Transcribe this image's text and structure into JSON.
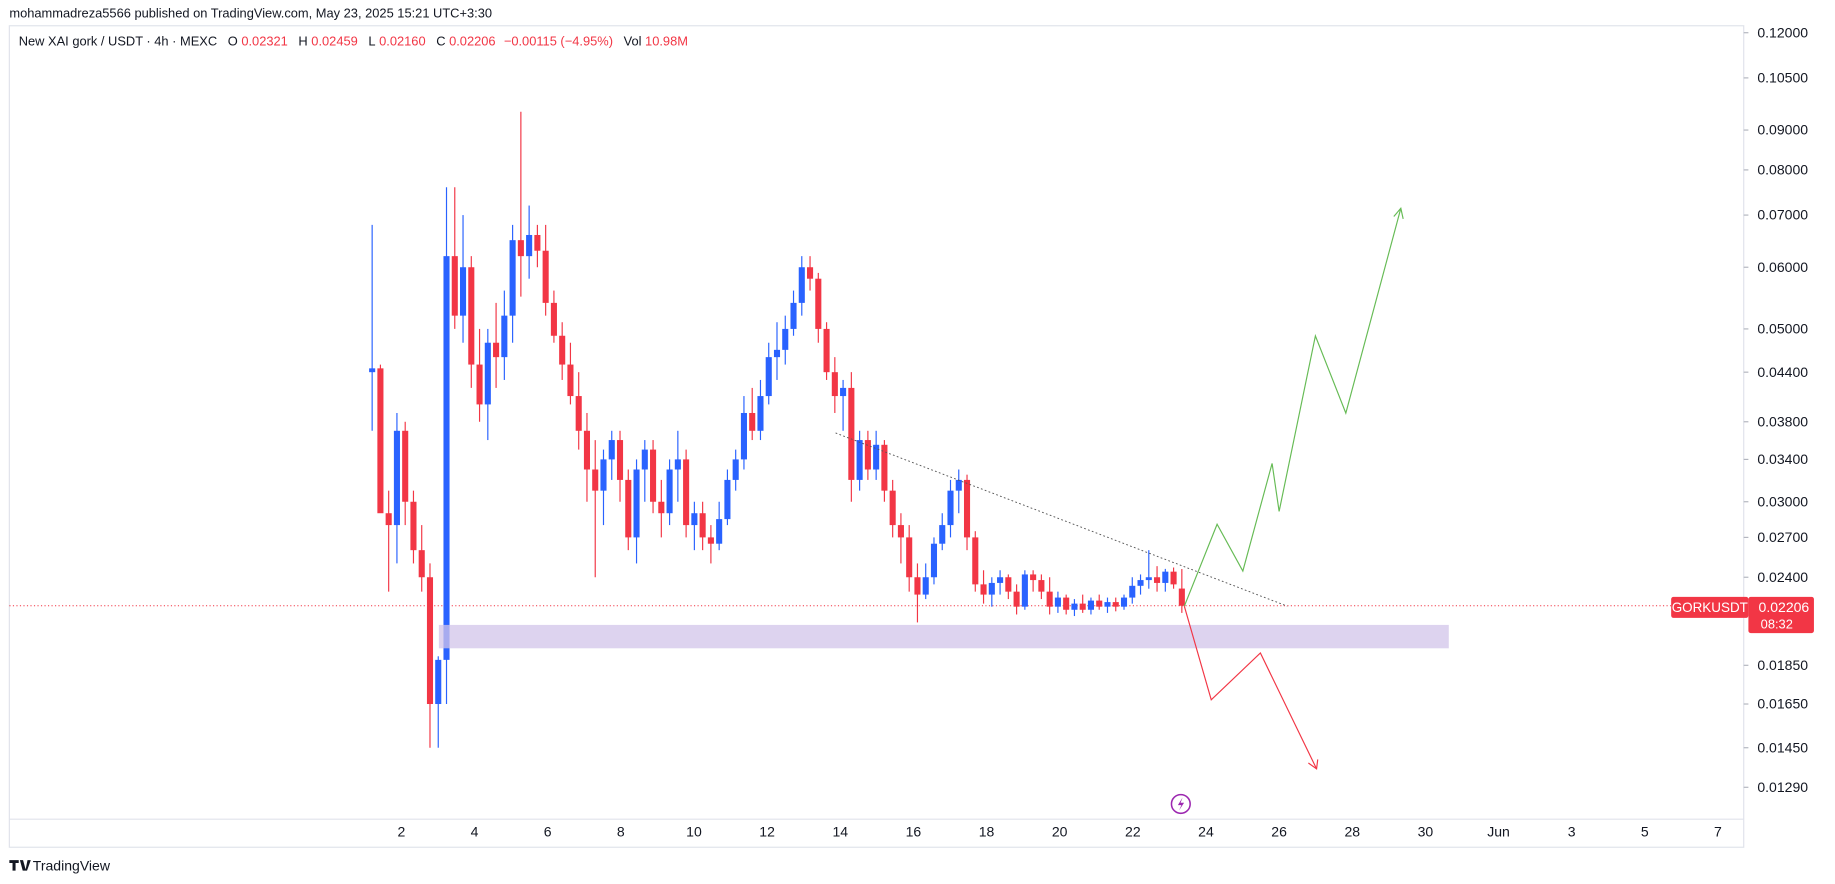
{
  "chart_data": {
    "type": "candlestick",
    "header": "mohammadreza5566 published on TradingView.com, May 23, 2025 15:21 UTC+3:30",
    "title": "New XAI gork / USDT · 4h · MEXC",
    "legend": {
      "o_label": "O",
      "o": "0.02321",
      "h_label": "H",
      "h": "0.02459",
      "l_label": "L",
      "l": "0.02160",
      "c_label": "C",
      "c": "0.02206",
      "change": "−0.00115 (−4.95%)",
      "vol_label": "Vol",
      "vol": "10.98M"
    },
    "symbol": "GORKUSDT",
    "last_price": {
      "value": 0.02206,
      "label": "0.02206"
    },
    "countdown": "08:32",
    "watermark": "TradingView",
    "log_scale": true,
    "up_color": "#2962ff",
    "down_color": "#f23645",
    "ylim": [
      0.01174,
      0.1225
    ],
    "yticks": [
      {
        "value": 0.12,
        "label": "0.12000"
      },
      {
        "value": 0.105,
        "label": "0.10500"
      },
      {
        "value": 0.09,
        "label": "0.09000"
      },
      {
        "value": 0.08,
        "label": "0.08000"
      },
      {
        "value": 0.07,
        "label": "0.07000"
      },
      {
        "value": 0.06,
        "label": "0.06000"
      },
      {
        "value": 0.05,
        "label": "0.05000"
      },
      {
        "value": 0.044,
        "label": "0.04400"
      },
      {
        "value": 0.038,
        "label": "0.03800"
      },
      {
        "value": 0.034,
        "label": "0.03400"
      },
      {
        "value": 0.03,
        "label": "0.03000"
      },
      {
        "value": 0.027,
        "label": "0.02700"
      },
      {
        "value": 0.024,
        "label": "0.02400"
      },
      {
        "value": 0.0185,
        "label": "0.01850"
      },
      {
        "value": 0.0165,
        "label": "0.01650"
      },
      {
        "value": 0.0145,
        "label": "0.01450"
      },
      {
        "value": 0.0129,
        "label": "0.01290"
      }
    ],
    "xtick_labels": [
      "2",
      "4",
      "6",
      "8",
      "10",
      "12",
      "14",
      "16",
      "18",
      "20",
      "22",
      "24",
      "26",
      "28",
      "30",
      "Jun",
      "3",
      "5",
      "7"
    ],
    "open": [
      0.044,
      0.0445,
      0.029,
      0.028,
      0.037,
      0.03,
      0.026,
      0.024,
      0.0165,
      0.0188,
      0.062,
      0.052,
      0.06,
      0.045,
      0.04,
      0.048,
      0.046,
      0.052,
      0.065,
      0.062,
      0.066,
      0.063,
      0.054,
      0.049,
      0.045,
      0.041,
      0.037,
      0.033,
      0.031,
      0.034,
      0.036,
      0.032,
      0.027,
      0.033,
      0.035,
      0.03,
      0.029,
      0.033,
      0.034,
      0.028,
      0.029,
      0.027,
      0.0265,
      0.0285,
      0.032,
      0.034,
      0.039,
      0.037,
      0.041,
      0.046,
      0.047,
      0.05,
      0.054,
      0.06,
      0.058,
      0.05,
      0.044,
      0.041,
      0.042,
      0.032,
      0.036,
      0.033,
      0.0355,
      0.031,
      0.028,
      0.027,
      0.024,
      0.0228,
      0.024,
      0.0265,
      0.028,
      0.031,
      0.032,
      0.027,
      0.0235,
      0.0228,
      0.0236,
      0.024,
      0.023,
      0.022,
      0.0242,
      0.0238,
      0.023,
      0.022,
      0.0226,
      0.0218,
      0.0222,
      0.0218,
      0.0224,
      0.022,
      0.0223,
      0.022,
      0.0226,
      0.0234,
      0.0238,
      0.024,
      0.0236,
      0.0244,
      0.02321
    ],
    "high": [
      0.068,
      0.045,
      0.031,
      0.039,
      0.038,
      0.031,
      0.028,
      0.025,
      0.019,
      0.076,
      0.076,
      0.07,
      0.062,
      0.05,
      0.05,
      0.054,
      0.056,
      0.068,
      0.095,
      0.072,
      0.068,
      0.068,
      0.056,
      0.051,
      0.048,
      0.044,
      0.039,
      0.036,
      0.035,
      0.037,
      0.037,
      0.033,
      0.034,
      0.036,
      0.036,
      0.032,
      0.034,
      0.037,
      0.035,
      0.03,
      0.03,
      0.028,
      0.03,
      0.033,
      0.035,
      0.041,
      0.042,
      0.043,
      0.048,
      0.051,
      0.052,
      0.056,
      0.062,
      0.062,
      0.059,
      0.051,
      0.046,
      0.043,
      0.044,
      0.037,
      0.037,
      0.037,
      0.036,
      0.032,
      0.029,
      0.028,
      0.025,
      0.025,
      0.027,
      0.029,
      0.032,
      0.033,
      0.0325,
      0.0275,
      0.0245,
      0.024,
      0.0245,
      0.0242,
      0.0235,
      0.0245,
      0.0245,
      0.0242,
      0.024,
      0.023,
      0.0228,
      0.0225,
      0.0228,
      0.0226,
      0.0228,
      0.0226,
      0.0226,
      0.0228,
      0.024,
      0.0242,
      0.026,
      0.0248,
      0.0246,
      0.0247,
      0.02459
    ],
    "low": [
      0.037,
      0.03,
      0.023,
      0.025,
      0.028,
      0.025,
      0.023,
      0.0145,
      0.0145,
      0.0165,
      0.05,
      0.048,
      0.042,
      0.038,
      0.036,
      0.042,
      0.043,
      0.048,
      0.055,
      0.058,
      0.06,
      0.052,
      0.048,
      0.043,
      0.04,
      0.035,
      0.03,
      0.024,
      0.028,
      0.032,
      0.03,
      0.026,
      0.025,
      0.03,
      0.029,
      0.027,
      0.028,
      0.03,
      0.027,
      0.026,
      0.026,
      0.025,
      0.026,
      0.028,
      0.031,
      0.033,
      0.036,
      0.036,
      0.04,
      0.043,
      0.045,
      0.049,
      0.052,
      0.056,
      0.048,
      0.043,
      0.039,
      0.037,
      0.03,
      0.031,
      0.032,
      0.032,
      0.03,
      0.027,
      0.025,
      0.023,
      0.021,
      0.0225,
      0.0235,
      0.026,
      0.027,
      0.029,
      0.026,
      0.023,
      0.0222,
      0.022,
      0.0228,
      0.0225,
      0.0215,
      0.0218,
      0.023,
      0.0225,
      0.0215,
      0.0216,
      0.0215,
      0.0214,
      0.0216,
      0.0215,
      0.0218,
      0.0216,
      0.0217,
      0.0218,
      0.0222,
      0.0228,
      0.0232,
      0.023,
      0.023,
      0.0232,
      0.0216
    ],
    "close": [
      0.0445,
      0.029,
      0.028,
      0.037,
      0.03,
      0.026,
      0.024,
      0.0165,
      0.0188,
      0.062,
      0.052,
      0.06,
      0.045,
      0.04,
      0.048,
      0.046,
      0.052,
      0.065,
      0.062,
      0.066,
      0.063,
      0.054,
      0.049,
      0.045,
      0.041,
      0.037,
      0.033,
      0.031,
      0.034,
      0.036,
      0.032,
      0.027,
      0.033,
      0.035,
      0.03,
      0.029,
      0.033,
      0.034,
      0.028,
      0.029,
      0.027,
      0.0265,
      0.0285,
      0.032,
      0.034,
      0.039,
      0.037,
      0.041,
      0.046,
      0.047,
      0.05,
      0.054,
      0.06,
      0.058,
      0.05,
      0.044,
      0.041,
      0.042,
      0.032,
      0.036,
      0.033,
      0.0355,
      0.031,
      0.028,
      0.027,
      0.024,
      0.0228,
      0.024,
      0.0265,
      0.028,
      0.031,
      0.032,
      0.027,
      0.0235,
      0.0228,
      0.0236,
      0.024,
      0.023,
      0.022,
      0.0242,
      0.0238,
      0.023,
      0.022,
      0.0226,
      0.0218,
      0.0222,
      0.0218,
      0.0224,
      0.022,
      0.0223,
      0.022,
      0.0226,
      0.0234,
      0.0238,
      0.024,
      0.0236,
      0.0244,
      0.0235,
      0.02206
    ]
  }
}
